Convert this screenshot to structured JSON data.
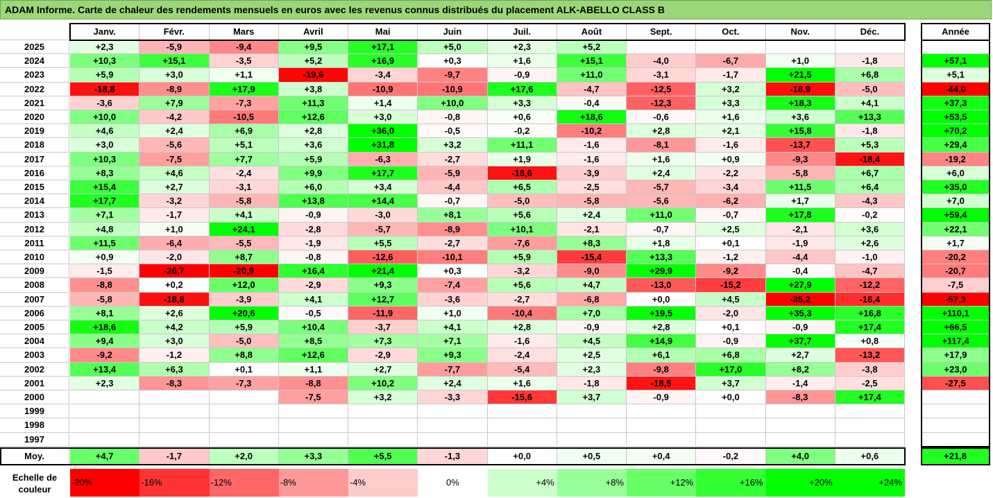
{
  "title": "ADAM Informe. Carte de chaleur des rendements mensuels en euros avec les revenus connus distribués du placement ALK-ABELLO CLASS B",
  "chart_data": {
    "type": "heatmap",
    "months": [
      "Janv.",
      "Févr.",
      "Mars",
      "Avril",
      "Mai",
      "Juin",
      "Juil.",
      "Août",
      "Sept.",
      "Oct.",
      "Nov.",
      "Déc."
    ],
    "year_header": "Année",
    "avg_label": "Moy.",
    "rows": [
      {
        "year": "2025",
        "m": [
          "+2,3",
          "-5,9",
          "-9,4",
          "+9,5",
          "+17,1",
          "+5,0",
          "+2,3",
          "+5,2",
          "",
          "",
          "",
          ""
        ],
        "y": ""
      },
      {
        "year": "2024",
        "m": [
          "+10,3",
          "+15,1",
          "-3,5",
          "+5,2",
          "+16,9",
          "+0,3",
          "+1,6",
          "+15,1",
          "-4,0",
          "-6,7",
          "+1,0",
          "-1,8"
        ],
        "y": "+57,1"
      },
      {
        "year": "2023",
        "m": [
          "+5,9",
          "+3,0",
          "+1,1",
          "-19,6",
          "-3,4",
          "-9,7",
          "-0,9",
          "+11,0",
          "-3,1",
          "-1,7",
          "+21,5",
          "+6,8"
        ],
        "y": "+5,1"
      },
      {
        "year": "2022",
        "m": [
          "-18,8",
          "-8,9",
          "+17,9",
          "+3,8",
          "-10,9",
          "-10,9",
          "+17,6",
          "-4,7",
          "-12,5",
          "+3,2",
          "-18,9",
          "-5,0"
        ],
        "y": "-44,0"
      },
      {
        "year": "2021",
        "m": [
          "-3,6",
          "+7,9",
          "-7,3",
          "+11,3",
          "+1,4",
          "+10,0",
          "+3,3",
          "-0,4",
          "-12,3",
          "+3,3",
          "+18,3",
          "+4,1"
        ],
        "y": "+37,3"
      },
      {
        "year": "2020",
        "m": [
          "+10,0",
          "-4,2",
          "-10,5",
          "+12,6",
          "+3,0",
          "-0,8",
          "+0,6",
          "+18,6",
          "-0,6",
          "+1,6",
          "+3,6",
          "+13,3"
        ],
        "y": "+53,5"
      },
      {
        "year": "2019",
        "m": [
          "+4,6",
          "+2,4",
          "+6,9",
          "+2,8",
          "+36,0",
          "-0,5",
          "-0,2",
          "-10,2",
          "+2,8",
          "+2,1",
          "+15,8",
          "-1,8"
        ],
        "y": "+70,2"
      },
      {
        "year": "2018",
        "m": [
          "+3,0",
          "-5,6",
          "+5,1",
          "+3,6",
          "+31,8",
          "+3,2",
          "+11,1",
          "-1,6",
          "-8,1",
          "-1,6",
          "-13,7",
          "+5,3"
        ],
        "y": "+29,4"
      },
      {
        "year": "2017",
        "m": [
          "+10,3",
          "-7,5",
          "+7,7",
          "+5,9",
          "-6,3",
          "-2,7",
          "+1,9",
          "-1,6",
          "+1,6",
          "+0,9",
          "-9,3",
          "-18,4"
        ],
        "y": "-19,2"
      },
      {
        "year": "2016",
        "m": [
          "+8,3",
          "+4,6",
          "-2,4",
          "+9,9",
          "+17,7",
          "-5,9",
          "-18,6",
          "-3,9",
          "+2,4",
          "-2,2",
          "-5,8",
          "+6,7"
        ],
        "y": "+6,0"
      },
      {
        "year": "2015",
        "m": [
          "+15,4",
          "+2,7",
          "-3,1",
          "+6,0",
          "+3,4",
          "-4,4",
          "+6,5",
          "-2,5",
          "-5,7",
          "-3,4",
          "+11,5",
          "+6,4"
        ],
        "y": "+35,0"
      },
      {
        "year": "2014",
        "m": [
          "+17,7",
          "-3,2",
          "-5,8",
          "+13,8",
          "+14,4",
          "-0,7",
          "-5,0",
          "-5,8",
          "-5,6",
          "-6,2",
          "+1,7",
          "-4,3"
        ],
        "y": "+7,0"
      },
      {
        "year": "2013",
        "m": [
          "+7,1",
          "-1,7",
          "+4,1",
          "-0,9",
          "-3,0",
          "+8,1",
          "+5,6",
          "+2,4",
          "+11,0",
          "-0,7",
          "+17,8",
          "-0,2"
        ],
        "y": "+59,4"
      },
      {
        "year": "2012",
        "m": [
          "+4,8",
          "+1,0",
          "+24,1",
          "-2,8",
          "-5,7",
          "-8,9",
          "+10,1",
          "-2,1",
          "-0,7",
          "+2,5",
          "-2,1",
          "+3,6"
        ],
        "y": "+22,1"
      },
      {
        "year": "2011",
        "m": [
          "+11,5",
          "-6,4",
          "-5,5",
          "-1,9",
          "+5,5",
          "-2,7",
          "-7,6",
          "+8,3",
          "+1,8",
          "+0,1",
          "-1,9",
          "+2,6"
        ],
        "y": "+1,7"
      },
      {
        "year": "2010",
        "m": [
          "+0,9",
          "-2,0",
          "+8,7",
          "-0,8",
          "-12,6",
          "-10,1",
          "+5,9",
          "-15,4",
          "+13,3",
          "-1,2",
          "-4,4",
          "-1,0"
        ],
        "y": "-20,2"
      },
      {
        "year": "2009",
        "m": [
          "-1,5",
          "-26,7",
          "-20,9",
          "+16,4",
          "+21,4",
          "+0,3",
          "-3,2",
          "-9,0",
          "+29,9",
          "-9,2",
          "-0,4",
          "-4,7"
        ],
        "y": "-20,7"
      },
      {
        "year": "2008",
        "m": [
          "-8,8",
          "+0,2",
          "+12,0",
          "-2,9",
          "+9,3",
          "-7,4",
          "+5,6",
          "+4,7",
          "-13,0",
          "-15,2",
          "+27,9",
          "-12,2"
        ],
        "y": "-7,5"
      },
      {
        "year": "2007",
        "m": [
          "-5,8",
          "-18,8",
          "-3,9",
          "+4,1",
          "+12,7",
          "-3,6",
          "-2,7",
          "-6,8",
          "+0,0",
          "+4,5",
          "-35,2",
          "-16,4"
        ],
        "y": "-57,3"
      },
      {
        "year": "2006",
        "m": [
          "+8,1",
          "+2,6",
          "+20,6",
          "-0,5",
          "-11,9",
          "+1,0",
          "-10,4",
          "+7,0",
          "+19,5",
          "-2,0",
          "+35,3",
          "+16,8"
        ],
        "y": "+110,1"
      },
      {
        "year": "2005",
        "m": [
          "+18,6",
          "+4,2",
          "+5,9",
          "+10,4",
          "-3,7",
          "+4,1",
          "+2,8",
          "-0,9",
          "+2,8",
          "+0,1",
          "-0,9",
          "+17,4"
        ],
        "y": "+66,5"
      },
      {
        "year": "2004",
        "m": [
          "+9,4",
          "+3,0",
          "-5,0",
          "+8,5",
          "+7,3",
          "+7,1",
          "-1,6",
          "+4,5",
          "+14,9",
          "-0,9",
          "+37,7",
          "+0,8"
        ],
        "y": "+117,4"
      },
      {
        "year": "2003",
        "m": [
          "-9,2",
          "-1,2",
          "+8,8",
          "+12,6",
          "-2,9",
          "+9,3",
          "-2,4",
          "+2,5",
          "+6,1",
          "+6,8",
          "+2,7",
          "-13,2"
        ],
        "y": "+17,9"
      },
      {
        "year": "2002",
        "m": [
          "+13,4",
          "+6,3",
          "+0,1",
          "+1,1",
          "+2,7",
          "-7,7",
          "-5,4",
          "+2,3",
          "-9,8",
          "+17,0",
          "+8,2",
          "-3,8"
        ],
        "y": "+23,0"
      },
      {
        "year": "2001",
        "m": [
          "+2,3",
          "-8,3",
          "-7,3",
          "-8,8",
          "+10,2",
          "+2,4",
          "+1,6",
          "-1,8",
          "-18,5",
          "+3,7",
          "-1,4",
          "-2,5"
        ],
        "y": "-27,5"
      },
      {
        "year": "2000",
        "m": [
          "",
          "",
          "",
          "-7,5",
          "+3,2",
          "-3,3",
          "-15,6",
          "+3,7",
          "-0,9",
          "+0,0",
          "-8,3",
          "+17,4"
        ],
        "y": ""
      },
      {
        "year": "1999",
        "m": [
          "",
          "",
          "",
          "",
          "",
          "",
          "",
          "",
          "",
          "",
          "",
          ""
        ],
        "y": ""
      },
      {
        "year": "1998",
        "m": [
          "",
          "",
          "",
          "",
          "",
          "",
          "",
          "",
          "",
          "",
          "",
          ""
        ],
        "y": ""
      },
      {
        "year": "1997",
        "m": [
          "",
          "",
          "",
          "",
          "",
          "",
          "",
          "",
          "",
          "",
          "",
          ""
        ],
        "y": ""
      }
    ],
    "averages": {
      "m": [
        "+4,7",
        "-1,7",
        "+2,0",
        "+3,3",
        "+5,5",
        "-1,3",
        "+0,0",
        "+0,5",
        "+0,4",
        "-0,2",
        "+4,0",
        "+0,6"
      ],
      "y": "+21,8"
    },
    "scale_label": "Echelle de couleur",
    "scale": [
      "-20%",
      "-16%",
      "-12%",
      "-8%",
      "-4%",
      "0%",
      "+4%",
      "+8%",
      "+12%",
      "+16%",
      "+20%",
      "+24%"
    ],
    "colors": {
      "neg_max": "#ff0000",
      "pos_max": "#00ff00",
      "neutral": "#ffffff"
    }
  }
}
